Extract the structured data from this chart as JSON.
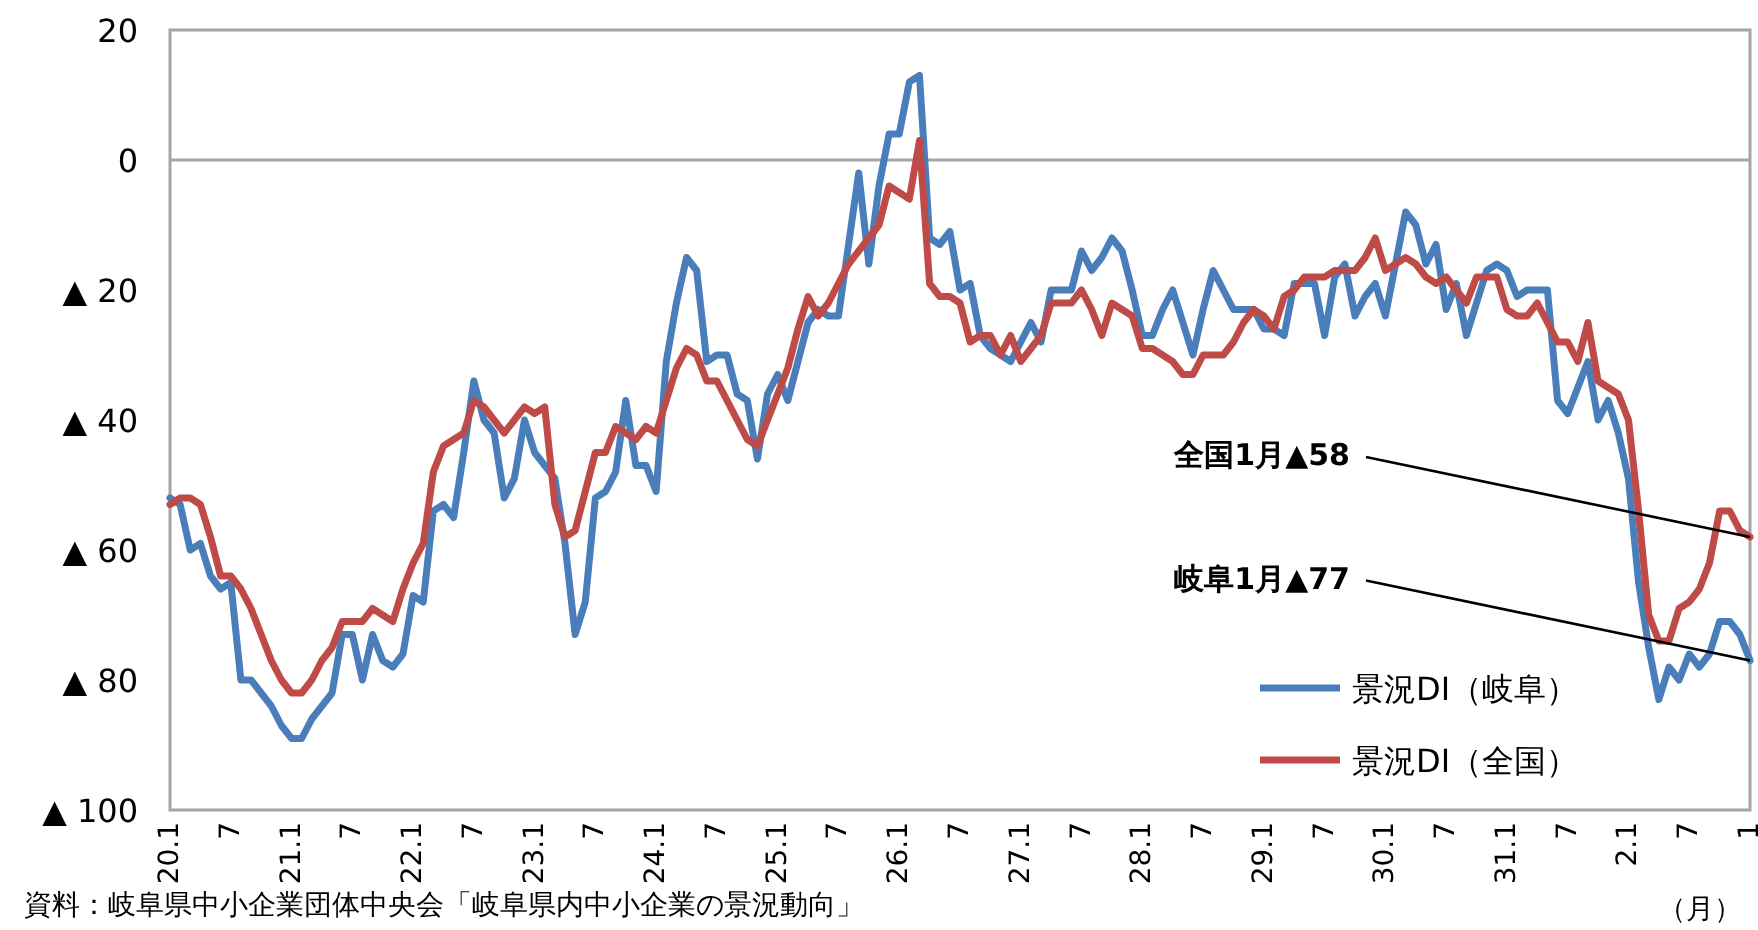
{
  "chart_data": {
    "type": "line",
    "xlabel": "（月）",
    "ylim": [
      -100,
      20
    ],
    "categories": [
      "20.1",
      null,
      null,
      null,
      null,
      null,
      "7",
      null,
      null,
      null,
      null,
      null,
      "21.1",
      null,
      null,
      null,
      null,
      null,
      "7",
      null,
      null,
      null,
      null,
      null,
      "22.1",
      null,
      null,
      null,
      null,
      null,
      "7",
      null,
      null,
      null,
      null,
      null,
      "23.1",
      null,
      null,
      null,
      null,
      null,
      "7",
      null,
      null,
      null,
      null,
      null,
      "24.1",
      null,
      null,
      null,
      null,
      null,
      "7",
      null,
      null,
      null,
      null,
      null,
      "25.1",
      null,
      null,
      null,
      null,
      null,
      "7",
      null,
      null,
      null,
      null,
      null,
      "26.1",
      null,
      null,
      null,
      null,
      null,
      "7",
      null,
      null,
      null,
      null,
      null,
      "27.1",
      null,
      null,
      null,
      null,
      null,
      "7",
      null,
      null,
      null,
      null,
      null,
      "28.1",
      null,
      null,
      null,
      null,
      null,
      "7",
      null,
      null,
      null,
      null,
      null,
      "29.1",
      null,
      null,
      null,
      null,
      null,
      "7",
      null,
      null,
      null,
      null,
      null,
      "30.1",
      null,
      null,
      null,
      null,
      null,
      "7",
      null,
      null,
      null,
      null,
      null,
      "31.1",
      null,
      null,
      null,
      null,
      null,
      "7",
      null,
      null,
      null,
      null,
      null,
      "2.1",
      null,
      null,
      null,
      null,
      null,
      "7",
      null,
      null,
      null,
      null,
      null,
      "1"
    ],
    "yticks": [
      20,
      0,
      {
        "value": -20,
        "label": "▲ 20"
      },
      {
        "value": -40,
        "label": "▲ 40"
      },
      {
        "value": -60,
        "label": "▲ 60"
      },
      {
        "value": -80,
        "label": "▲ 80"
      },
      {
        "value": -100,
        "label": "▲ 100"
      }
    ],
    "ref_lines": [
      {
        "axis": "y",
        "value": 0,
        "color": "#a6a6a6"
      }
    ],
    "legend": "bottom right",
    "annotations": [
      {
        "text": "全国1月▲58",
        "x": "1",
        "y": -58
      },
      {
        "text": "岐阜1月▲77",
        "x": "1",
        "y": -77
      },
      "資料：岐阜県中小企業団体中央会「岐阜県内中小企業の景況動向」"
    ],
    "series": [
      {
        "name": "景況DI（岐阜）",
        "color": "#4a7ebb",
        "values": [
          -52,
          -53,
          -60,
          -59,
          -64,
          -66,
          -65,
          -80,
          -80,
          -82,
          -84,
          -87,
          -89,
          -89,
          -86,
          -84,
          -82,
          -73,
          -73,
          -80,
          -73,
          -77,
          -78,
          -76,
          -67,
          -68,
          -54,
          -53,
          -55,
          -45,
          -34,
          -40,
          -42,
          -52,
          -49,
          -40,
          -45,
          -47,
          -49,
          -59,
          -73,
          -68,
          -52,
          -51,
          -48,
          -37,
          -47,
          -47,
          -51,
          -31,
          -22,
          -15,
          -17,
          -31,
          -30,
          -30,
          -36,
          -37,
          -46,
          -36,
          -33,
          -37,
          -31,
          -25,
          -23,
          -24,
          -24,
          -13,
          -2,
          -16,
          -4,
          4,
          4,
          12,
          13,
          -12,
          -13,
          -11,
          -20,
          -19,
          -27,
          -29,
          -30,
          -31,
          -28,
          -25,
          -28,
          -20,
          -20,
          -20,
          -14,
          -17,
          -15,
          -12,
          -14,
          -20,
          -27,
          -27,
          -23,
          -20,
          -25,
          -30,
          -23,
          -17,
          -20,
          -23,
          -23,
          -23,
          -26,
          -26,
          -27,
          -19,
          -19,
          -19,
          -27,
          -18,
          -16,
          -24,
          -21,
          -19,
          -24,
          -16,
          -8,
          -10,
          -16,
          -13,
          -23,
          -19,
          -27,
          -22,
          -17,
          -16,
          -17,
          -21,
          -20,
          -20,
          -20,
          -37,
          -39,
          -35,
          -31,
          -40,
          -37,
          -42,
          -49,
          -65,
          -75,
          -83,
          -78,
          -80,
          -76,
          -78,
          -76,
          -71,
          -71,
          -73,
          -77
        ]
      },
      {
        "name": "景況DI（全国）",
        "color": "#be4b48",
        "values": [
          -53,
          -52,
          -52,
          -53,
          -58,
          -64,
          -64,
          -66,
          -69,
          -73,
          -77,
          -80,
          -82,
          -82,
          -80,
          -77,
          -75,
          -71,
          -71,
          -71,
          -69,
          -70,
          -71,
          -66,
          -62,
          -59,
          -48,
          -44,
          -43,
          -42,
          -37,
          -38,
          -40,
          -42,
          -40,
          -38,
          -39,
          -38,
          -53,
          -58,
          -57,
          -51,
          -45,
          -45,
          -41,
          -42,
          -43,
          -41,
          -42,
          -37,
          -32,
          -29,
          -30,
          -34,
          -34,
          -37,
          -40,
          -43,
          -44,
          -40,
          -36,
          -32,
          -26,
          -21,
          -24,
          -22,
          -19,
          -16,
          -14,
          -12,
          -10,
          -4,
          -5,
          -6,
          3,
          -19,
          -21,
          -21,
          -22,
          -28,
          -27,
          -27,
          -30,
          -27,
          -31,
          -29,
          -27,
          -22,
          -22,
          -22,
          -20,
          -23,
          -27,
          -22,
          -23,
          -24,
          -29,
          -29,
          -30,
          -31,
          -33,
          -33,
          -30,
          -30,
          -30,
          -28,
          -25,
          -23,
          -24,
          -26,
          -21,
          -20,
          -18,
          -18,
          -18,
          -17,
          -17,
          -17,
          -15,
          -12,
          -17,
          -16,
          -15,
          -16,
          -18,
          -19,
          -18,
          -20,
          -22,
          -18,
          -18,
          -18,
          -23,
          -24,
          -24,
          -22,
          -25,
          -28,
          -28,
          -31,
          -25,
          -34,
          -35,
          -36,
          -40,
          -54,
          -70,
          -74,
          -74,
          -69,
          -68,
          -66,
          -62,
          -54,
          -54,
          -57,
          -58
        ]
      }
    ]
  }
}
